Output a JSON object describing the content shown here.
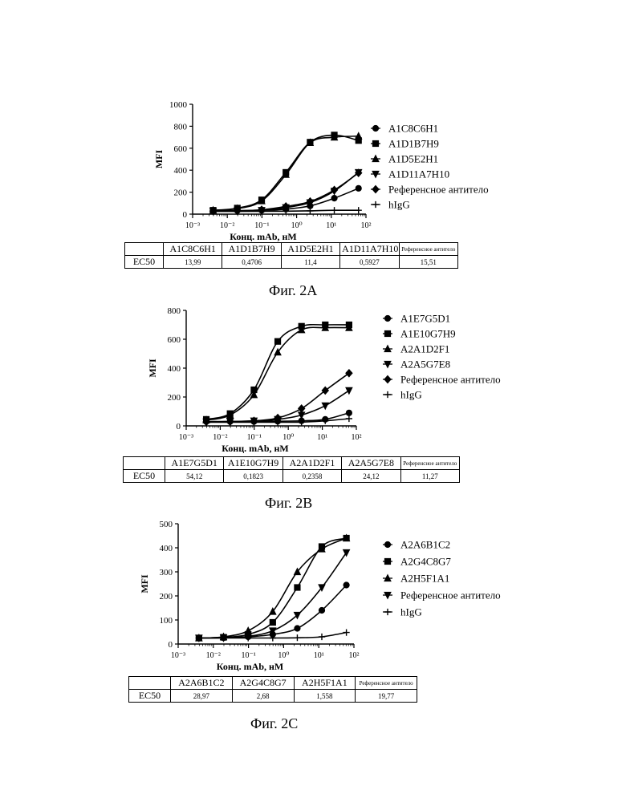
{
  "chart_data": [
    {
      "type": "line",
      "xscale": "log",
      "xlabel": "Конц. mAb, нМ",
      "ylabel": "MFI",
      "xlim": [
        0.001,
        100
      ],
      "ylim": [
        0,
        1000
      ],
      "xtick_labels": [
        "10⁻³",
        "10⁻²",
        "10⁻¹",
        "10⁰",
        "10¹",
        "10²"
      ],
      "ytick_labels": [
        "0",
        "200",
        "400",
        "600",
        "800",
        "1000"
      ],
      "x": [
        0.0039,
        0.0195,
        0.098,
        0.49,
        2.45,
        12.2,
        61
      ],
      "series": [
        {
          "name": "A1C8C6H1",
          "marker": "circle",
          "values": [
            30,
            32,
            35,
            45,
            75,
            145,
            235
          ]
        },
        {
          "name": "A1D1B7H9",
          "marker": "square",
          "values": [
            35,
            55,
            130,
            380,
            655,
            720,
            670
          ]
        },
        {
          "name": "A1D5E2H1",
          "marker": "triangle-up",
          "values": [
            35,
            50,
            120,
            360,
            650,
            700,
            710
          ]
        },
        {
          "name": "A1D11A7H10",
          "marker": "triangle-down",
          "values": [
            28,
            30,
            35,
            60,
            105,
            210,
            380
          ]
        },
        {
          "name": "Референсное антитело",
          "marker": "diamond",
          "values": [
            28,
            30,
            40,
            70,
            115,
            220,
            375
          ]
        },
        {
          "name": "hIgG",
          "marker": "plus",
          "values": [
            25,
            25,
            26,
            27,
            30,
            35,
            35
          ]
        }
      ],
      "table": {
        "row_label": "EC50",
        "headers": [
          "A1C8C6H1",
          "A1D1B7H9",
          "A1D5E2H1",
          "A1D11A7H10",
          "Референсное антитело"
        ],
        "values": [
          "13,99",
          "0,4706",
          "11,4",
          "0,5927",
          "15,51"
        ]
      },
      "caption": "Фиг. 2A"
    },
    {
      "type": "line",
      "xscale": "log",
      "xlabel": "Конц. mAb, нМ",
      "ylabel": "MFI",
      "xlim": [
        0.001,
        100
      ],
      "ylim": [
        0,
        800
      ],
      "xtick_labels": [
        "10⁻³",
        "10⁻²",
        "10⁻¹",
        "10⁰",
        "10¹",
        "10²"
      ],
      "ytick_labels": [
        "0",
        "200",
        "400",
        "600",
        "800"
      ],
      "x": [
        0.0039,
        0.0195,
        0.098,
        0.49,
        2.45,
        12.2,
        61
      ],
      "series": [
        {
          "name": "A1E7G5D1",
          "marker": "circle",
          "values": [
            30,
            30,
            30,
            32,
            35,
            45,
            90
          ]
        },
        {
          "name": "A1E10G7H9",
          "marker": "square",
          "values": [
            45,
            85,
            250,
            585,
            690,
            700,
            700
          ]
        },
        {
          "name": "A2A1D2F1",
          "marker": "triangle-up",
          "values": [
            40,
            75,
            215,
            510,
            665,
            680,
            680
          ]
        },
        {
          "name": "A2A5G7E8",
          "marker": "triangle-down",
          "values": [
            28,
            30,
            35,
            45,
            75,
            140,
            245
          ]
        },
        {
          "name": "Референсное антитело",
          "marker": "diamond",
          "values": [
            28,
            30,
            35,
            55,
            120,
            245,
            365
          ]
        },
        {
          "name": "hIgG",
          "marker": "plus",
          "values": [
            25,
            25,
            25,
            25,
            26,
            35,
            50
          ]
        }
      ],
      "table": {
        "row_label": "EC50",
        "headers": [
          "A1E7G5D1",
          "A1E10G7H9",
          "A2A1D2F1",
          "A2A5G7E8",
          "Референсное антитело"
        ],
        "values": [
          "54,12",
          "0,1823",
          "0,2358",
          "24,12",
          "11,27"
        ]
      },
      "caption": "Фиг. 2B"
    },
    {
      "type": "line",
      "xscale": "log",
      "xlabel": "Конц. mAb, нМ",
      "ylabel": "MFI",
      "xlim": [
        0.001,
        100
      ],
      "ylim": [
        0,
        500
      ],
      "xtick_labels": [
        "10⁻³",
        "10⁻²",
        "10⁻¹",
        "10⁰",
        "10¹",
        "10²"
      ],
      "ytick_labels": [
        "0",
        "100",
        "200",
        "300",
        "400",
        "500"
      ],
      "x": [
        0.0039,
        0.0195,
        0.098,
        0.49,
        2.45,
        12.2,
        61
      ],
      "series": [
        {
          "name": "A2A6B1C2",
          "marker": "circle",
          "values": [
            25,
            26,
            30,
            40,
            65,
            140,
            245
          ]
        },
        {
          "name": "A2G4C8G7",
          "marker": "square",
          "values": [
            25,
            28,
            40,
            90,
            235,
            405,
            440
          ]
        },
        {
          "name": "A2H5F1A1",
          "marker": "triangle-up",
          "values": [
            25,
            30,
            55,
            135,
            300,
            395,
            440
          ]
        },
        {
          "name": "Референсное антитело",
          "marker": "triangle-down",
          "values": [
            25,
            26,
            32,
            55,
            120,
            235,
            380
          ]
        },
        {
          "name": "hIgG",
          "marker": "plus",
          "values": [
            25,
            25,
            25,
            25,
            26,
            30,
            48
          ]
        }
      ],
      "table": {
        "row_label": "EC50",
        "headers": [
          "A2A6B1C2",
          "A2G4C8G7",
          "A2H5F1A1",
          "Референсное антитело"
        ],
        "values": [
          "28,97",
          "2,68",
          "1,558",
          "19,77"
        ]
      },
      "caption": "Фиг. 2C"
    }
  ]
}
